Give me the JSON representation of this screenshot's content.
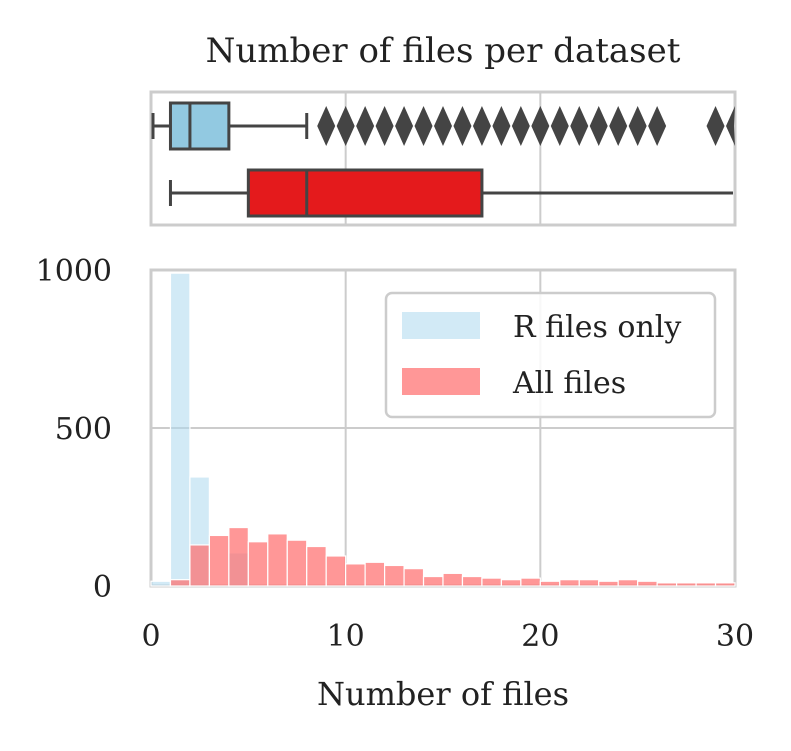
{
  "chart_data": [
    {
      "type": "box",
      "title": "Number of files per dataset",
      "xlim": [
        0,
        30
      ],
      "grid": true,
      "series": [
        {
          "name": "R files only",
          "color": "#92c9e1",
          "whisker_low": 0,
          "q1": 1,
          "median": 2,
          "q3": 4,
          "whisker_high": 8,
          "outliers": [
            9,
            10,
            11,
            12,
            13,
            14,
            15,
            16,
            17,
            18,
            19,
            20,
            21,
            22,
            23,
            24,
            25,
            26,
            29,
            30
          ]
        },
        {
          "name": "All files",
          "color": "#e41a1c",
          "whisker_low": 1,
          "q1": 5,
          "median": 8,
          "q3": 17,
          "whisker_high": 30,
          "outliers": []
        }
      ]
    },
    {
      "type": "histogram",
      "xlabel": "Number of files",
      "ylabel": "",
      "xlim": [
        0,
        30
      ],
      "ylim": [
        0,
        1000
      ],
      "xticks": [
        "0",
        "10",
        "20",
        "30"
      ],
      "yticks": [
        "0",
        "500",
        "1000"
      ],
      "grid": true,
      "legend_position": "top-right",
      "bin_width": 1,
      "series": [
        {
          "name": "R files only",
          "color": "#add8ee",
          "bins": [
            {
              "x": 0,
              "count": 15
            },
            {
              "x": 1,
              "count": 990
            },
            {
              "x": 2,
              "count": 345
            },
            {
              "x": 3,
              "count": 0
            },
            {
              "x": 4,
              "count": 105
            }
          ]
        },
        {
          "name": "All files",
          "color": "#ff6b6b",
          "bins": [
            {
              "x": 1,
              "count": 20
            },
            {
              "x": 2,
              "count": 130
            },
            {
              "x": 3,
              "count": 160
            },
            {
              "x": 4,
              "count": 185
            },
            {
              "x": 5,
              "count": 140
            },
            {
              "x": 6,
              "count": 165
            },
            {
              "x": 7,
              "count": 145
            },
            {
              "x": 8,
              "count": 125
            },
            {
              "x": 9,
              "count": 95
            },
            {
              "x": 10,
              "count": 70
            },
            {
              "x": 11,
              "count": 75
            },
            {
              "x": 12,
              "count": 65
            },
            {
              "x": 13,
              "count": 55
            },
            {
              "x": 14,
              "count": 30
            },
            {
              "x": 15,
              "count": 40
            },
            {
              "x": 16,
              "count": 30
            },
            {
              "x": 17,
              "count": 25
            },
            {
              "x": 18,
              "count": 20
            },
            {
              "x": 19,
              "count": 25
            },
            {
              "x": 20,
              "count": 15
            },
            {
              "x": 21,
              "count": 20
            },
            {
              "x": 22,
              "count": 20
            },
            {
              "x": 23,
              "count": 15
            },
            {
              "x": 24,
              "count": 20
            },
            {
              "x": 25,
              "count": 15
            },
            {
              "x": 26,
              "count": 10
            },
            {
              "x": 27,
              "count": 10
            },
            {
              "x": 28,
              "count": 10
            },
            {
              "x": 29,
              "count": 10
            }
          ]
        }
      ]
    }
  ]
}
